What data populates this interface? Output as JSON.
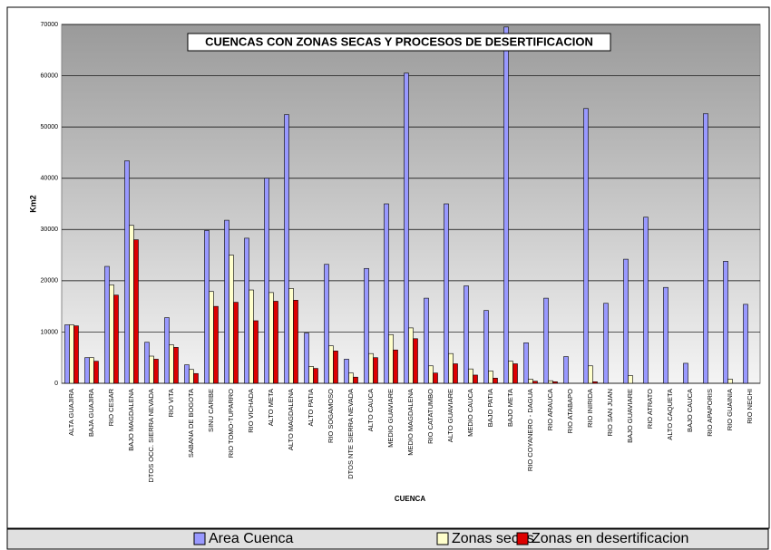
{
  "chart_data": {
    "type": "bar",
    "title": "CUENCAS CON ZONAS SECAS Y PROCESOS DE DESERTIFICACION",
    "x_label": "CUENCA",
    "y_label": "Km2",
    "categories": [
      "ALTA GUAJIRA",
      "BAJA GUAJIRA",
      "RIO  CESAR",
      "BAJO MAGDALENA",
      "DTOS OCC. SIERRA NEVADA",
      "RIO VITA",
      "SABANA DE BOGOTA",
      "SINU CARIBE",
      "RIO TOMO-TUPARRO",
      "RIO VICHADA",
      "ALTO META",
      "ALTO MAGDALENA",
      "ALTO PATIA",
      "RIO SOGAMOSO",
      "DTOS NTE SIERRA NEVADA",
      "ALTO CAUCA",
      "MEDIO GUAVIARE",
      "MEDIO MAGDALENA",
      "RIO CATATUMBO",
      "ALTO GUAVIARE",
      "MEDIO CAUCA",
      "BAJO PATIA",
      "BAJO META",
      "RIO COYANERO - DAGUA",
      "RIO ARAUCA",
      "RIO ATABAPO",
      "RIO INIRIDA",
      "RIO SAN JUAN",
      "BAJO GUAVIARE",
      "RIO ATRATO",
      "ALTO CAQUETA",
      "BAJO CAUCA",
      "RIO APAPORIS",
      "RIO GUAINIA",
      "RIO NECHI"
    ],
    "series": [
      {
        "name": "Area Cuenca",
        "color": "#9999ff",
        "values": [
          11400,
          5000,
          22800,
          43400,
          8000,
          12800,
          3600,
          29800,
          31800,
          28300,
          40000,
          52400,
          9800,
          23200,
          4700,
          22400,
          35000,
          60500,
          16600,
          35000,
          19000,
          14200,
          69500,
          7900,
          16600,
          5200,
          53600,
          15600,
          24200,
          32400,
          18700,
          3900,
          52600,
          23800,
          15400
        ]
      },
      {
        "name": "Zonas secas",
        "color": "#ffffcc",
        "values": [
          11400,
          5000,
          19200,
          30800,
          5300,
          7500,
          2700,
          17900,
          25000,
          18200,
          17700,
          18500,
          3300,
          7300,
          2000,
          5800,
          9500,
          10800,
          3400,
          5800,
          2800,
          2400,
          4300,
          800,
          500,
          0,
          3400,
          0,
          1500,
          0,
          0,
          0,
          0,
          800,
          0
        ]
      },
      {
        "name": "Zonas en desertificacion",
        "color": "#dd0000",
        "values": [
          11200,
          4300,
          17200,
          28000,
          4700,
          7000,
          1900,
          15000,
          15800,
          12200,
          16000,
          16200,
          2900,
          6300,
          1200,
          5000,
          6500,
          8700,
          2000,
          3800,
          1600,
          1000,
          3800,
          400,
          300,
          0,
          300,
          0,
          0,
          0,
          0,
          0,
          0,
          0,
          0
        ]
      }
    ],
    "ylim": [
      0,
      70000
    ],
    "yticks": [
      0,
      10000,
      20000,
      30000,
      40000,
      50000,
      60000,
      70000
    ],
    "grid": true
  }
}
